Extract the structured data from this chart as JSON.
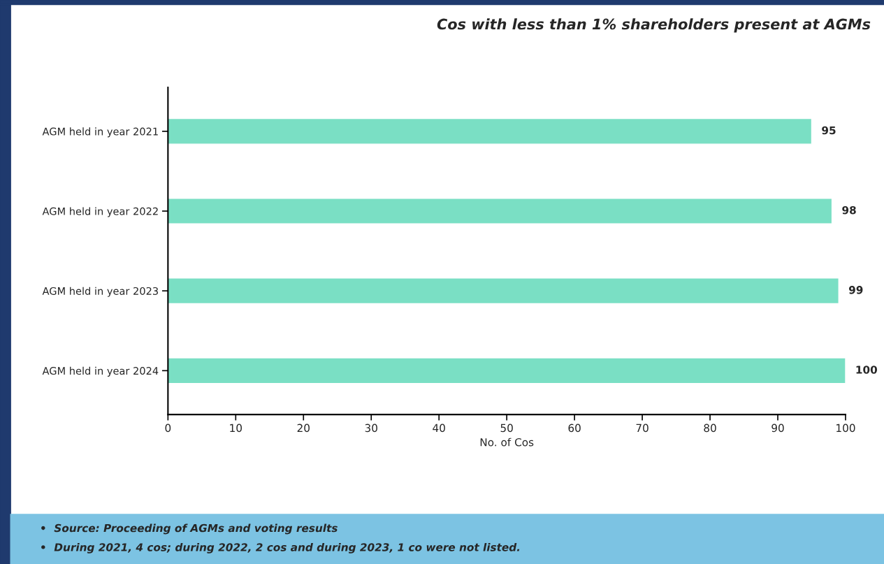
{
  "chart_data": {
    "type": "bar",
    "orientation": "horizontal",
    "title": "Cos with less than 1% shareholders present at AGMs",
    "categories": [
      "AGM held in year 2021",
      "AGM held in year 2022",
      "AGM held in year 2023",
      "AGM held in year 2024"
    ],
    "values": [
      95,
      98,
      99,
      100
    ],
    "color": "#7adfc4",
    "xlabel": "No. of Cos",
    "xlim": [
      0,
      100
    ],
    "xticks": [
      0,
      10,
      20,
      30,
      40,
      50,
      60,
      70,
      80,
      90,
      100
    ],
    "data_labels": true,
    "grid": false,
    "annotations": [
      "•  Source: Proceeding of AGMs and voting results",
      "•  During 2021, 4 cos; during 2022, 2 cos and during 2023, 1 co were not listed."
    ]
  }
}
